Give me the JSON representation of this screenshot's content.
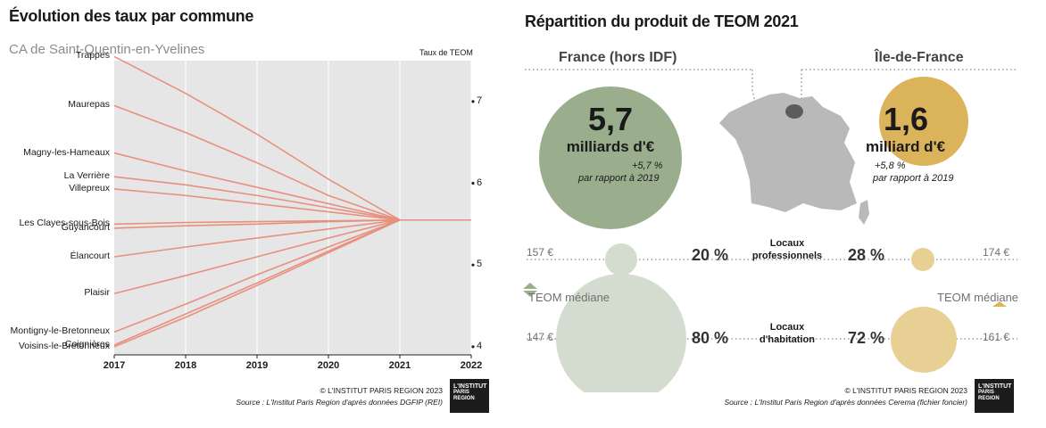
{
  "left_panel": {
    "title": "Évolution des taux par commune",
    "subtitle": "CA de Saint-Quentin-en-Yvelines",
    "copyright": "© L'INSTITUT PARIS REGION 2023",
    "source": "Source : L'Institut Paris Region d'après données DGFIP (REI)"
  },
  "right_panel": {
    "title": "Répartition du produit de TEOM 2021",
    "france": {
      "label": "France (hors IDF)",
      "value": "5,7",
      "unit": "milliards d'€",
      "growth": "+5,7 %",
      "growth_note": "par rapport à 2019",
      "color": "#9aae8d"
    },
    "idf": {
      "label": "Île-de-France",
      "value": "1,6",
      "unit": "milliard d'€",
      "growth": "+5,8 %",
      "growth_note": "par rapport à 2019",
      "color": "#dbb35b"
    },
    "teom_mediane": "TEOM médiane",
    "categories": [
      {
        "label_line1": "Locaux",
        "label_line2": "professionnels",
        "france_median": "157 €",
        "france_share": "20 %",
        "idf_share": "28 %",
        "idf_median": "174 €"
      },
      {
        "label_line1": "Locaux",
        "label_line2": "d'habitation",
        "france_median": "147 €",
        "france_share": "80 %",
        "idf_share": "72 %",
        "idf_median": "161 €"
      }
    ],
    "copyright": "© L'INSTITUT PARIS REGION 2023",
    "source": "Source : L'Institut Paris Region d'après données Cerema (fichier foncier)"
  },
  "logo": {
    "line1": "L'INSTITUT",
    "line2": "PARIS",
    "line3": "REGION"
  },
  "chart_data": [
    {
      "type": "line",
      "title": "Évolution des taux par commune",
      "subtitle": "CA de Saint-Quentin-en-Yvelines",
      "ylabel": "Taux de TEOM",
      "x": [
        2017,
        2018,
        2019,
        2020,
        2021,
        2022
      ],
      "ylim": [
        3.9,
        7.5
      ],
      "yticks": [
        "4",
        "5",
        "6",
        "7"
      ],
      "color": "#e8907e",
      "background": "#e6e6e6",
      "series": [
        {
          "name": "Trappes",
          "values": [
            7.55,
            7.1,
            6.6,
            6.05,
            5.55,
            5.55
          ]
        },
        {
          "name": "Maurepas",
          "values": [
            6.95,
            6.62,
            6.25,
            5.85,
            5.55,
            5.55
          ]
        },
        {
          "name": "Magny-les-Hameaux",
          "values": [
            6.37,
            6.15,
            5.95,
            5.75,
            5.55,
            5.55
          ]
        },
        {
          "name": "La Verrière",
          "values": [
            6.08,
            5.98,
            5.85,
            5.7,
            5.55,
            5.55
          ]
        },
        {
          "name": "Villepreux",
          "values": [
            5.93,
            5.85,
            5.75,
            5.65,
            5.55,
            5.55
          ]
        },
        {
          "name": "Les Clayes-sous-Bois",
          "values": [
            5.5,
            5.52,
            5.53,
            5.54,
            5.55,
            5.55
          ]
        },
        {
          "name": "Guyancourt",
          "values": [
            5.45,
            5.48,
            5.5,
            5.53,
            5.55,
            5.55
          ]
        },
        {
          "name": "Élancourt",
          "values": [
            5.1,
            5.22,
            5.33,
            5.44,
            5.55,
            5.55
          ]
        },
        {
          "name": "Plaisir",
          "values": [
            4.65,
            4.87,
            5.1,
            5.33,
            5.55,
            5.55
          ]
        },
        {
          "name": "Montigny-le-Bretonneux",
          "values": [
            4.18,
            4.52,
            4.88,
            5.22,
            5.55,
            5.55
          ]
        },
        {
          "name": "Coignières",
          "values": [
            4.02,
            4.4,
            4.78,
            5.17,
            5.55,
            5.55
          ]
        },
        {
          "name": "Voisins-le-Bretonneux",
          "values": [
            4.0,
            4.36,
            4.75,
            5.15,
            5.55,
            5.55
          ]
        }
      ]
    },
    {
      "type": "bubble",
      "title": "Répartition du produit de TEOM 2021",
      "series": [
        {
          "name": "France (hors IDF)",
          "total_billion_eur": 5.7,
          "growth_pct_vs_2019": 5.7,
          "shares_pct": {
            "Locaux professionnels": 20,
            "Locaux d'habitation": 80
          },
          "median_teom_eur": {
            "Locaux professionnels": 157,
            "Locaux d'habitation": 147
          }
        },
        {
          "name": "Île-de-France",
          "total_billion_eur": 1.6,
          "growth_pct_vs_2019": 5.8,
          "shares_pct": {
            "Locaux professionnels": 28,
            "Locaux d'habitation": 72
          },
          "median_teom_eur": {
            "Locaux professionnels": 174,
            "Locaux d'habitation": 161
          }
        }
      ]
    }
  ]
}
